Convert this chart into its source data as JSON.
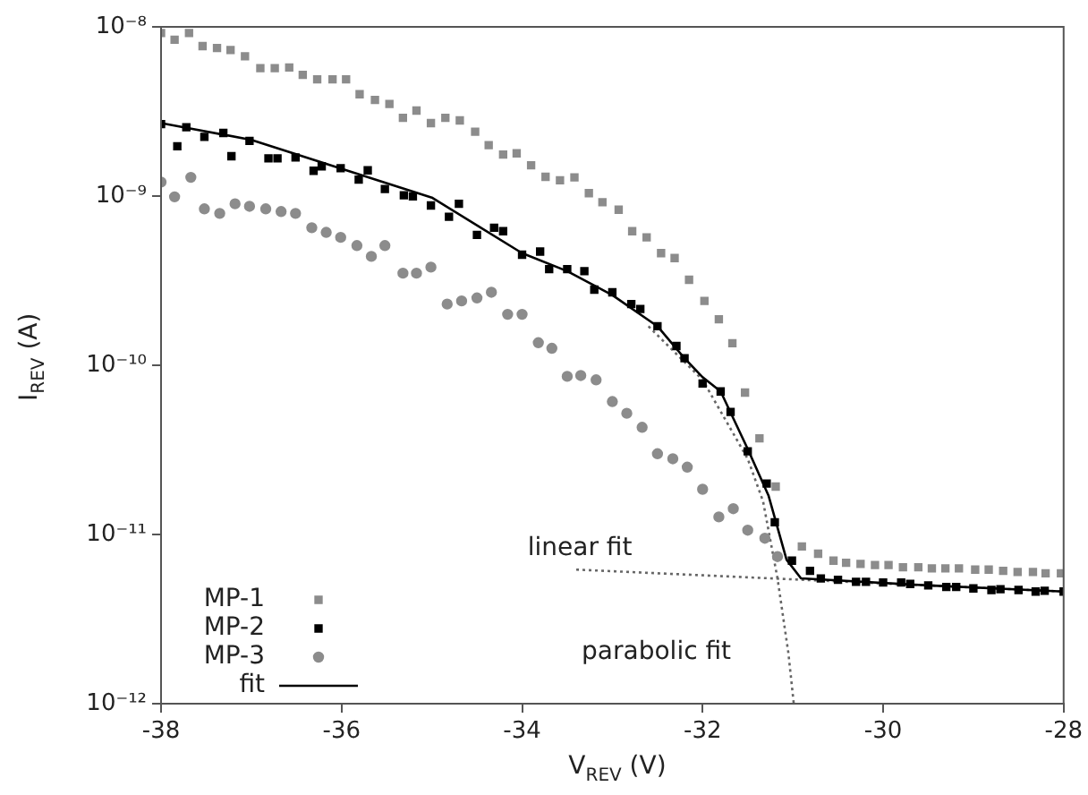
{
  "chart_data": {
    "type": "scatter",
    "xlabel": "V$_{REV}$ (V)",
    "ylabel": "I$_{REV}$ (A)",
    "log": "y",
    "grid": false,
    "legend": "bottom left",
    "xlim": [
      -38,
      -28
    ],
    "xticks": [
      -38,
      -36,
      -34,
      -32,
      -30,
      -28
    ],
    "ylim": [
      1e-12,
      1e-08
    ],
    "yticks": [
      {
        "value": 1e-12,
        "label": "10⁻¹²"
      },
      {
        "value": 1e-11,
        "label": "10⁻¹¹"
      },
      {
        "value": 1e-10,
        "label": "10⁻¹⁰"
      },
      {
        "value": 1e-09,
        "label": "10⁻⁹"
      },
      {
        "value": 1e-08,
        "label": "10⁻⁸"
      }
    ],
    "series": [
      {
        "name": "MP-1",
        "color": "#8c8c8c",
        "marker": "square",
        "x": [
          -38.0,
          -37.85,
          -37.69,
          -37.54,
          -37.38,
          -37.23,
          -37.07,
          -36.9,
          -36.74,
          -36.58,
          -36.43,
          -36.27,
          -36.1,
          -35.95,
          -35.8,
          -35.63,
          -35.47,
          -35.32,
          -35.17,
          -35.01,
          -34.85,
          -34.69,
          -34.52,
          -34.37,
          -34.21,
          -34.06,
          -33.9,
          -33.74,
          -33.58,
          -33.42,
          -33.26,
          -33.11,
          -32.93,
          -32.78,
          -32.62,
          -32.46,
          -32.31,
          -32.15,
          -31.98,
          -31.82,
          -31.67,
          -31.53,
          -31.37,
          -31.19,
          -30.9,
          -30.72,
          -30.55,
          -30.41,
          -30.25,
          -30.09,
          -29.94,
          -29.78,
          -29.61,
          -29.46,
          -29.31,
          -29.16,
          -28.98,
          -28.83,
          -28.67,
          -28.51,
          -28.34,
          -28.2,
          -28.03
        ],
        "values": [
          9.2e-09,
          8.4e-09,
          9.2e-09,
          7.7e-09,
          7.5e-09,
          7.3e-09,
          6.7e-09,
          5.7e-09,
          5.7e-09,
          5.75e-09,
          5.2e-09,
          4.9e-09,
          4.9e-09,
          4.9e-09,
          4e-09,
          3.7e-09,
          3.5e-09,
          2.9e-09,
          3.2e-09,
          2.7e-09,
          2.9e-09,
          2.8e-09,
          2.4e-09,
          2e-09,
          1.76e-09,
          1.79e-09,
          1.52e-09,
          1.3e-09,
          1.24e-09,
          1.29e-09,
          1.04e-09,
          9.2e-10,
          8.3e-10,
          6.2e-10,
          5.7e-10,
          4.6e-10,
          4.3e-10,
          3.2e-10,
          2.4e-10,
          1.87e-10,
          1.35e-10,
          6.9e-11,
          3.7e-11,
          1.92e-11,
          8.5e-12,
          7.7e-12,
          7e-12,
          6.8e-12,
          6.7e-12,
          6.6e-12,
          6.6e-12,
          6.4e-12,
          6.4e-12,
          6.3e-12,
          6.3e-12,
          6.3e-12,
          6.2e-12,
          6.2e-12,
          6.1e-12,
          6e-12,
          6e-12,
          5.9e-12,
          5.9e-12
        ]
      },
      {
        "name": "MP-2",
        "color": "#000000",
        "marker": "square",
        "x": [
          -38.0,
          -37.82,
          -37.72,
          -37.52,
          -37.31,
          -37.22,
          -37.02,
          -36.81,
          -36.71,
          -36.51,
          -36.31,
          -36.22,
          -36.01,
          -35.81,
          -35.71,
          -35.52,
          -35.31,
          -35.21,
          -35.01,
          -34.81,
          -34.7,
          -34.5,
          -34.31,
          -34.21,
          -34.0,
          -33.8,
          -33.7,
          -33.5,
          -33.31,
          -33.2,
          -33.0,
          -32.79,
          -32.69,
          -32.5,
          -32.29,
          -32.2,
          -32.0,
          -31.8,
          -31.69,
          -31.5,
          -31.29,
          -31.2,
          -31.01,
          -30.81,
          -30.69,
          -30.5,
          -30.3,
          -30.19,
          -30.0,
          -29.8,
          -29.7,
          -29.5,
          -29.3,
          -29.19,
          -29.0,
          -28.8,
          -28.7,
          -28.5,
          -28.31,
          -28.21,
          -28.0
        ],
        "values": [
          2.66e-09,
          1.97e-09,
          2.55e-09,
          2.24e-09,
          2.36e-09,
          1.72e-09,
          2.12e-09,
          1.67e-09,
          1.67e-09,
          1.69e-09,
          1.41e-09,
          1.5e-09,
          1.46e-09,
          1.25e-09,
          1.42e-09,
          1.1e-09,
          1.01e-09,
          9.95e-10,
          8.8e-10,
          7.55e-10,
          9e-10,
          5.9e-10,
          6.5e-10,
          6.2e-10,
          4.5e-10,
          4.7e-10,
          3.7e-10,
          3.7e-10,
          3.6e-10,
          2.8e-10,
          2.7e-10,
          2.3e-10,
          2.15e-10,
          1.7e-10,
          1.3e-10,
          1.1e-10,
          7.8e-11,
          7e-11,
          5.3e-11,
          3.1e-11,
          2e-11,
          1.18e-11,
          7e-12,
          6.1e-12,
          5.5e-12,
          5.4e-12,
          5.25e-12,
          5.25e-12,
          5.2e-12,
          5.2e-12,
          5.1e-12,
          5e-12,
          4.9e-12,
          4.9e-12,
          4.8e-12,
          4.7e-12,
          4.75e-12,
          4.7e-12,
          4.6e-12,
          4.65e-12,
          4.6e-12
        ]
      },
      {
        "name": "MP-3",
        "color": "#8c8c8c",
        "marker": "circle",
        "x": [
          -38.0,
          -37.85,
          -37.67,
          -37.52,
          -37.35,
          -37.18,
          -37.02,
          -36.84,
          -36.67,
          -36.51,
          -36.33,
          -36.17,
          -36.01,
          -35.83,
          -35.67,
          -35.52,
          -35.32,
          -35.17,
          -35.01,
          -34.83,
          -34.67,
          -34.5,
          -34.34,
          -34.16,
          -34.0,
          -33.82,
          -33.67,
          -33.5,
          -33.35,
          -33.18,
          -33.0,
          -32.84,
          -32.67,
          -32.5,
          -32.33,
          -32.17,
          -32.0,
          -31.82,
          -31.66,
          -31.5,
          -31.31,
          -31.17
        ],
        "values": [
          1.21e-09,
          9.9e-10,
          1.29e-09,
          8.4e-10,
          7.9e-10,
          9e-10,
          8.7e-10,
          8.4e-10,
          8.1e-10,
          7.9e-10,
          6.5e-10,
          6.1e-10,
          5.7e-10,
          5.1e-10,
          4.4e-10,
          5.1e-10,
          3.5e-10,
          3.5e-10,
          3.8e-10,
          2.3e-10,
          2.4e-10,
          2.5e-10,
          2.7e-10,
          2e-10,
          2e-10,
          1.36e-10,
          1.26e-10,
          8.6e-11,
          8.7e-11,
          8.2e-11,
          6.1e-11,
          5.2e-11,
          4.3e-11,
          3e-11,
          2.8e-11,
          2.5e-11,
          1.85e-11,
          1.27e-11,
          1.42e-11,
          1.06e-11,
          9.5e-12,
          7.4e-12
        ]
      },
      {
        "name": "fit",
        "type": "line",
        "color": "#000000",
        "marker": "none",
        "line_style": "solid",
        "x": [
          -38,
          -37,
          -36,
          -35,
          -34,
          -33.5,
          -33,
          -32.5,
          -32.2,
          -32,
          -31.8,
          -31.5,
          -31.27,
          -31.07,
          -30.91,
          -29.5,
          -28
        ],
        "values": [
          2.7e-09,
          2.15e-09,
          1.45e-09,
          9.8e-10,
          4.6e-10,
          3.6e-10,
          2.6e-10,
          1.7e-10,
          1.1e-10,
          8.5e-11,
          7e-11,
          3.2e-11,
          1.7e-11,
          7.1e-12,
          5.5e-12,
          5e-12,
          4.6e-12
        ]
      },
      {
        "type": "line",
        "color": "#666666",
        "marker": "none",
        "line_style": "dotted",
        "x": [
          -33.4,
          -28
        ],
        "values": [
          6.2e-12,
          4.6e-12
        ]
      },
      {
        "type": "line",
        "color": "#666666",
        "marker": "none",
        "line_style": "dotted",
        "x": [
          -32.6,
          -32,
          -31.5,
          -31.33,
          -31.17,
          -31.05,
          -30.99
        ],
        "values": [
          1.7e-10,
          8.2e-11,
          2.8e-11,
          1.57e-11,
          5.5e-12,
          2e-12,
          1e-12
        ]
      }
    ],
    "annotations": [
      {
        "text": "linear fit",
        "x": -33.4,
        "y": 6.2e-12
      },
      {
        "text": "parabolic fit",
        "x": -31.05,
        "y": 2e-12
      }
    ]
  }
}
